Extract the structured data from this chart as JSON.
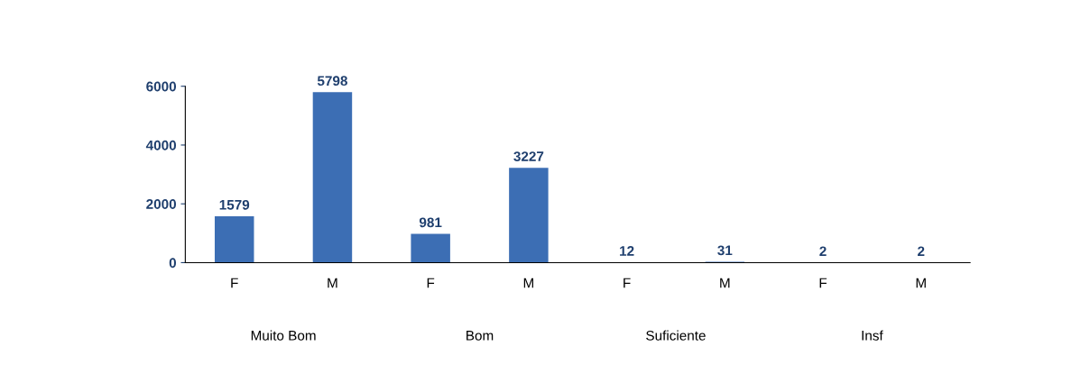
{
  "chart_data": {
    "type": "bar",
    "categories": [
      "F",
      "M",
      "F",
      "M",
      "F",
      "M",
      "F",
      "M"
    ],
    "values": [
      1579,
      5798,
      981,
      3227,
      12,
      31,
      2,
      2
    ],
    "color": "#3c6eb4",
    "ylim": [
      0,
      6000
    ],
    "yticks": [
      0,
      2000,
      4000,
      6000
    ],
    "data_labels": true,
    "grid": false,
    "annotations": [
      "Muito Bom",
      "Bom",
      "Suficiente",
      "Insf"
    ]
  }
}
